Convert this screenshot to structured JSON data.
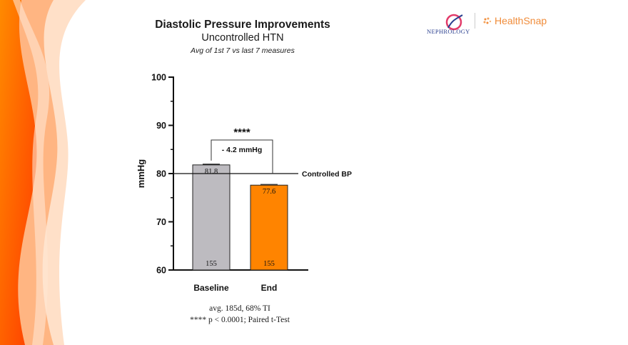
{
  "header": {
    "title": "Diastolic Pressure Improvements",
    "subtitle": "Uncontrolled HTN",
    "note": "Avg of 1st 7 vs last 7 measures"
  },
  "logos": {
    "nephrology": "NEPHROLOGY",
    "healthsnap": "HealthSnap"
  },
  "footnotes": {
    "line1": "avg. 185d,  68% TI",
    "line2": "**** p < 0.0001; Paired t-Test"
  },
  "colors": {
    "baseline_bar": "#bdbbc0",
    "end_bar": "#ff8400",
    "accent_orange": "#ff6a00",
    "axis": "#111111"
  },
  "chart_data": {
    "type": "bar",
    "ylabel": "mmHg",
    "ylim": [
      60,
      100
    ],
    "yticks": [
      60,
      70,
      80,
      90,
      100
    ],
    "categories": [
      "Baseline",
      "End"
    ],
    "values": [
      81.8,
      77.6
    ],
    "value_labels": [
      "81.8",
      "77.6"
    ],
    "n_labels": [
      "155",
      "155"
    ],
    "reference_line": {
      "value": 80,
      "label": "Controlled BP"
    },
    "annotation": {
      "significance": "****",
      "difference": "- 4.2 mmHg"
    }
  }
}
